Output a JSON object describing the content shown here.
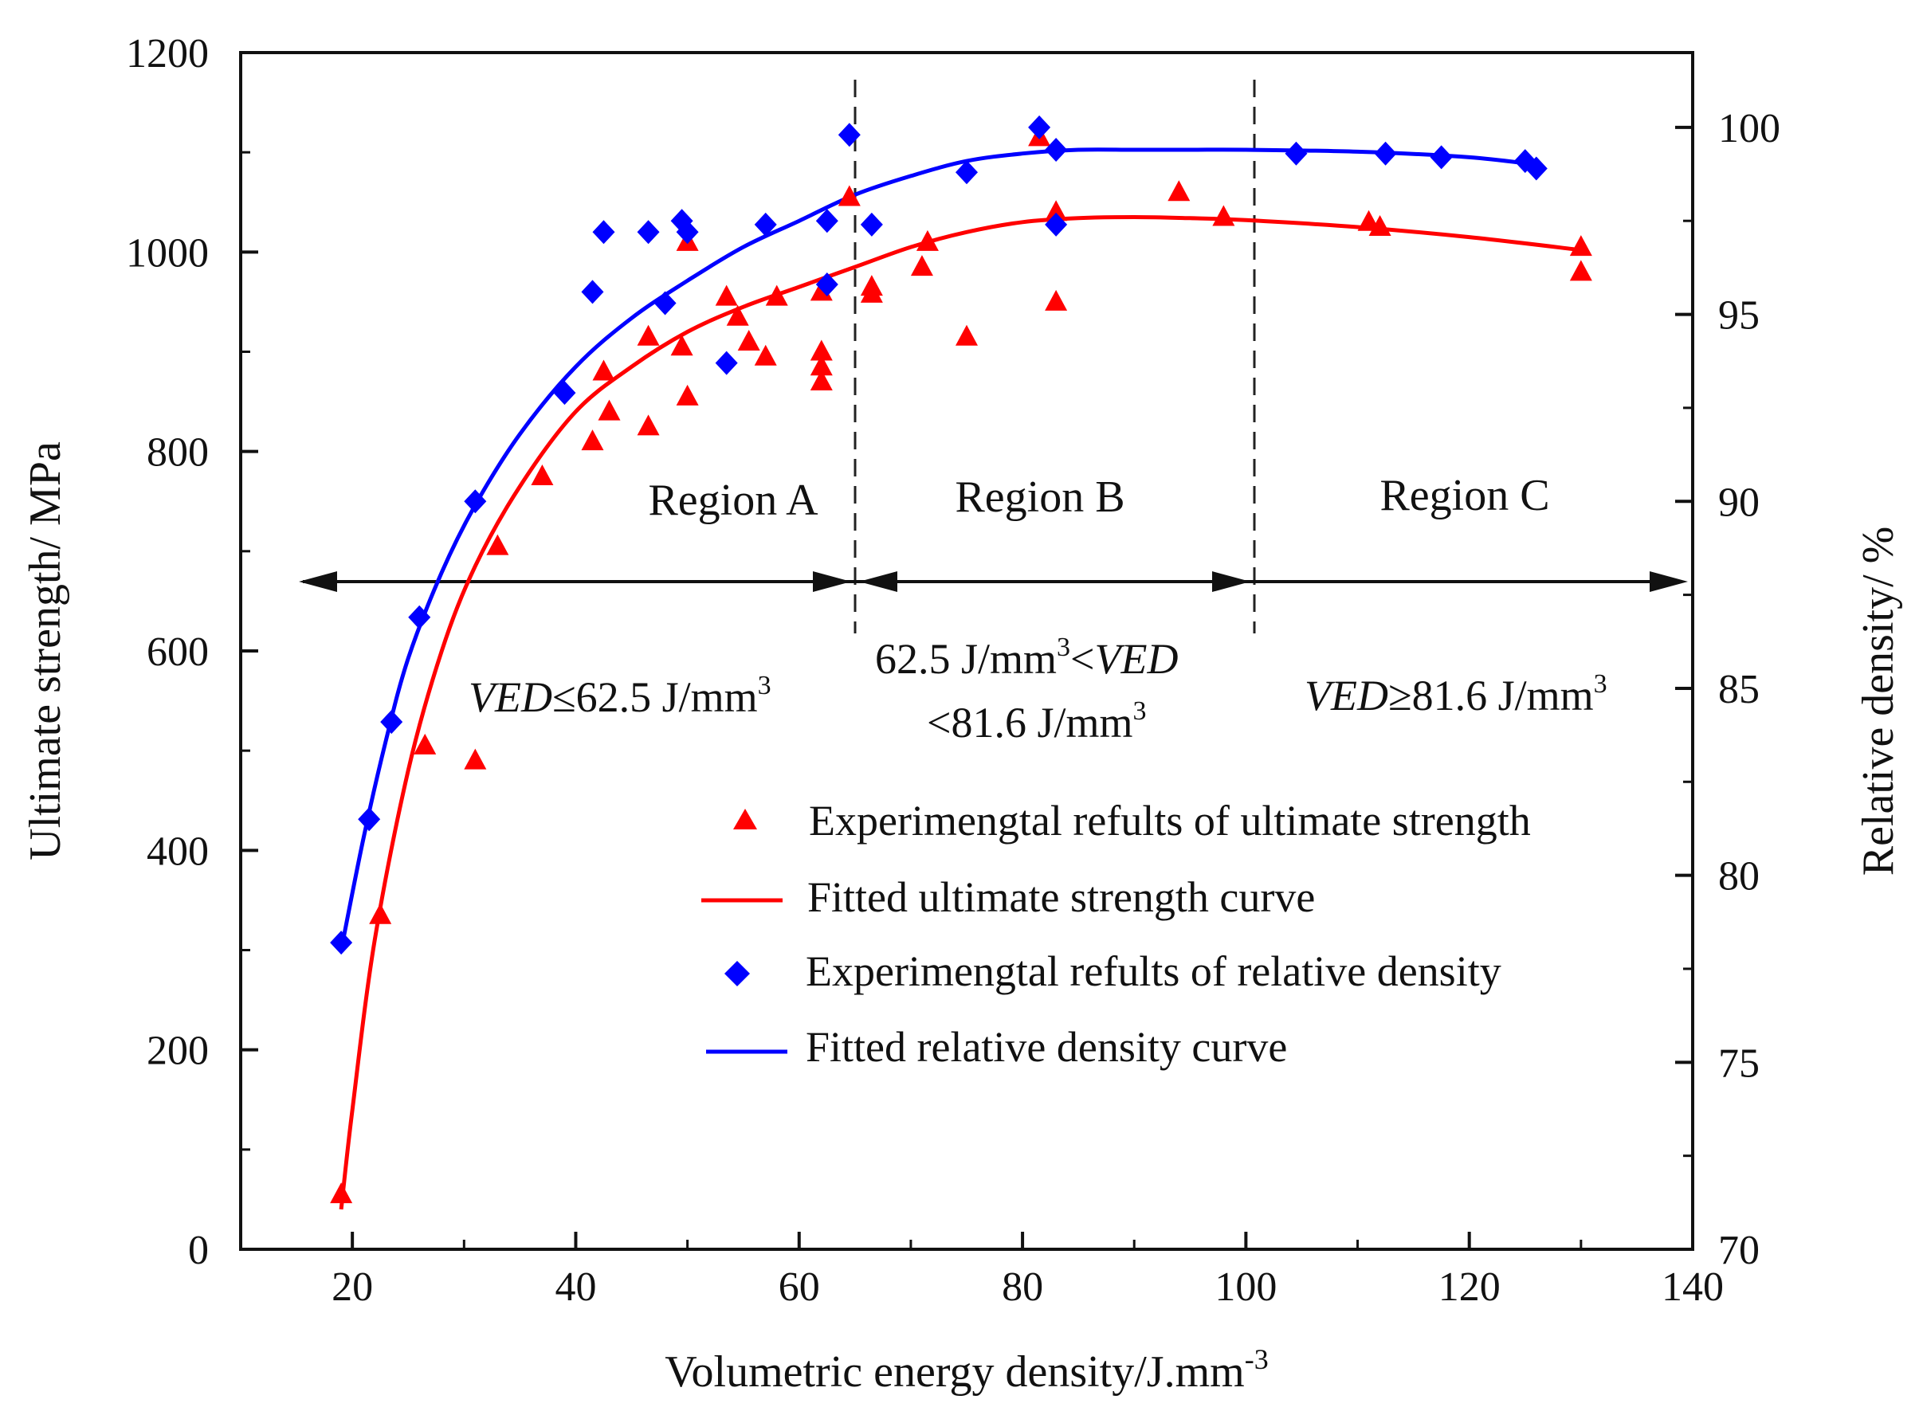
{
  "chart_data": {
    "type": "scatter",
    "xlabel": "Volumetric energy density/J.mm",
    "xlabel_superscript": "-3",
    "ylabel_left": "Ultimate strength/ MPa",
    "ylabel_right": "Relative density/ %",
    "xlim": [
      10,
      140
    ],
    "ylim_left": [
      0,
      1200
    ],
    "ylim_right": [
      70,
      102
    ],
    "x_ticks": [
      "20",
      "40",
      "60",
      "80",
      "100",
      "120",
      "140"
    ],
    "y_left_ticks": [
      "0",
      "200",
      "400",
      "600",
      "800",
      "1000",
      "1200"
    ],
    "y_right_ticks": [
      "70",
      "75",
      "80",
      "85",
      "90",
      "95",
      "100"
    ],
    "regions": [
      {
        "label": "Region A",
        "text_start": 0
      },
      {
        "label": "Region B",
        "text_start": 0
      },
      {
        "label": "Region C",
        "text_start": 0
      }
    ],
    "region_boundaries": [
      62.5,
      81.6
    ],
    "ved_labels": {
      "a_pre": "VED",
      "a_post": "≤62.5 J/mm",
      "a_sup": "3",
      "b1_pre": "62.5 J/mm",
      "b1_sup": "3",
      "b1_mid": "<",
      "b1_post": "VED",
      "b2_pre": "<81.6 J/mm",
      "b2_sup": "3",
      "c_pre": "VED",
      "c_post": "≥81.6 J/mm",
      "c_sup": "3"
    },
    "legend_position": "lower-right",
    "series": [
      {
        "name": "Experimengtal refults of ultimate strength",
        "kind": "points",
        "axis": "left",
        "marker": "triangle",
        "color": "#ff0000",
        "points": [
          [
            19,
            55
          ],
          [
            22.5,
            335
          ],
          [
            26.5,
            505
          ],
          [
            31,
            490
          ],
          [
            33,
            705
          ],
          [
            37,
            775
          ],
          [
            41.5,
            810
          ],
          [
            42.5,
            880
          ],
          [
            43,
            840
          ],
          [
            46.5,
            825
          ],
          [
            46.5,
            915
          ],
          [
            49.5,
            905
          ],
          [
            50,
            855
          ],
          [
            50,
            1010
          ],
          [
            53.5,
            955
          ],
          [
            54.5,
            935
          ],
          [
            55.5,
            910
          ],
          [
            57,
            895
          ],
          [
            58,
            955
          ],
          [
            62,
            960
          ],
          [
            62,
            900
          ],
          [
            62,
            885
          ],
          [
            62,
            870
          ],
          [
            64.5,
            1055
          ],
          [
            66.5,
            965
          ],
          [
            66.5,
            958
          ],
          [
            71,
            985
          ],
          [
            71.5,
            1010
          ],
          [
            75,
            915
          ],
          [
            81.5,
            1115
          ],
          [
            83,
            1040
          ],
          [
            83,
            950
          ],
          [
            94,
            1060
          ],
          [
            98,
            1035
          ],
          [
            111,
            1030
          ],
          [
            112,
            1025
          ],
          [
            130,
            1005
          ],
          [
            130,
            980
          ]
        ]
      },
      {
        "name": "Fitted ultimate strength curve",
        "kind": "line",
        "axis": "left",
        "color": "#ff0000",
        "points": [
          [
            19,
            40
          ],
          [
            20,
            140
          ],
          [
            22,
            310
          ],
          [
            25,
            480
          ],
          [
            28,
            600
          ],
          [
            31,
            685
          ],
          [
            35,
            765
          ],
          [
            40,
            840
          ],
          [
            45,
            885
          ],
          [
            50,
            920
          ],
          [
            55,
            945
          ],
          [
            60,
            965
          ],
          [
            65,
            985
          ],
          [
            70,
            1005
          ],
          [
            75,
            1020
          ],
          [
            80,
            1030
          ],
          [
            85,
            1034
          ],
          [
            90,
            1035
          ],
          [
            95,
            1034
          ],
          [
            100,
            1032
          ],
          [
            110,
            1025
          ],
          [
            120,
            1015
          ],
          [
            130,
            1002
          ]
        ]
      },
      {
        "name": "Experimengtal refults of relative density",
        "kind": "points",
        "axis": "right",
        "marker": "diamond",
        "color": "#0000ff",
        "points": [
          [
            19,
            78.2
          ],
          [
            21.5,
            81.5
          ],
          [
            23.5,
            84.1
          ],
          [
            26,
            86.9
          ],
          [
            31,
            90
          ],
          [
            39,
            92.9
          ],
          [
            41.5,
            95.6
          ],
          [
            42.5,
            97.2
          ],
          [
            46.5,
            97.2
          ],
          [
            48,
            95.3
          ],
          [
            49.5,
            97.5
          ],
          [
            50,
            97.2
          ],
          [
            53.5,
            93.7
          ],
          [
            57,
            97.4
          ],
          [
            62.5,
            97.5
          ],
          [
            62.5,
            95.8
          ],
          [
            64.5,
            99.8
          ],
          [
            66.5,
            97.4
          ],
          [
            75,
            98.8
          ],
          [
            81.5,
            100
          ],
          [
            83,
            99.4
          ],
          [
            83,
            97.4
          ],
          [
            104.5,
            99.3
          ],
          [
            112.5,
            99.3
          ],
          [
            117.5,
            99.2
          ],
          [
            125,
            99.1
          ],
          [
            126,
            98.9
          ]
        ]
      },
      {
        "name": "Fitted relative density curve",
        "kind": "line",
        "axis": "right",
        "color": "#0000ff",
        "points": [
          [
            19,
            78
          ],
          [
            21,
            81
          ],
          [
            23,
            83.6
          ],
          [
            25,
            85.8
          ],
          [
            28,
            88.1
          ],
          [
            31,
            89.9
          ],
          [
            35,
            91.8
          ],
          [
            40,
            93.6
          ],
          [
            45,
            94.9
          ],
          [
            50,
            95.9
          ],
          [
            55,
            96.8
          ],
          [
            60,
            97.5
          ],
          [
            65,
            98.2
          ],
          [
            70,
            98.7
          ],
          [
            75,
            99.1
          ],
          [
            80,
            99.3
          ],
          [
            85,
            99.4
          ],
          [
            90,
            99.4
          ],
          [
            95,
            99.4
          ],
          [
            100,
            99.4
          ],
          [
            110,
            99.35
          ],
          [
            120,
            99.2
          ],
          [
            126,
            99
          ]
        ]
      }
    ],
    "legend": [
      {
        "label": "Experimengtal refults of ultimate strength",
        "symbol": "triangle",
        "color": "#ff0000"
      },
      {
        "label": "Fitted ultimate strength curve",
        "symbol": "line",
        "color": "#ff0000"
      },
      {
        "label": "Experimengtal refults of relative density",
        "symbol": "diamond",
        "color": "#0000ff"
      },
      {
        "label": "Fitted relative density  curve",
        "symbol": "line",
        "color": "#0000ff"
      }
    ]
  }
}
